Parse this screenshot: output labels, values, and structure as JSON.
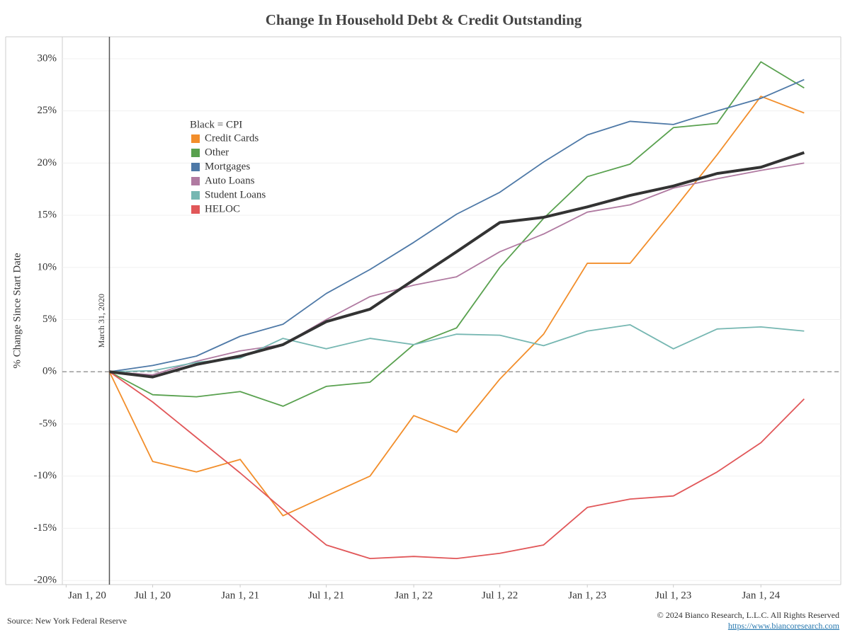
{
  "chart_data": {
    "type": "line",
    "title": "Change In Household Debt & Credit Outstanding",
    "y_label": "% Change Since Start Date",
    "legend_title": "Black = CPI",
    "annotation": "March 31, 2020",
    "annotation_x": "2020-04-01",
    "source": "Source: New York Federal Reserve",
    "copyright": "© 2024 Bianco Research, L.L.C. All Rights Reserved",
    "url": "https://www.biancoresearch.com",
    "x": [
      "2020-04-01",
      "2020-07-01",
      "2020-10-01",
      "2021-01-01",
      "2021-04-01",
      "2021-07-01",
      "2021-10-01",
      "2022-01-01",
      "2022-04-01",
      "2022-07-01",
      "2022-10-01",
      "2023-01-01",
      "2023-04-01",
      "2023-07-01",
      "2023-10-01",
      "2024-01-01",
      "2024-04-01"
    ],
    "xlim": [
      "2019-12-24",
      "2024-06-17"
    ],
    "xticks": [
      {
        "value": "2020-01-01",
        "label": "Jan 1, 20"
      },
      {
        "value": "2020-07-01",
        "label": "Jul 1, 20"
      },
      {
        "value": "2021-01-01",
        "label": "Jan 1, 21"
      },
      {
        "value": "2021-07-01",
        "label": "Jul 1, 21"
      },
      {
        "value": "2022-01-01",
        "label": "Jan 1, 22"
      },
      {
        "value": "2022-07-01",
        "label": "Jul 1, 22"
      },
      {
        "value": "2023-01-01",
        "label": "Jan 1, 23"
      },
      {
        "value": "2023-07-01",
        "label": "Jul 1, 23"
      },
      {
        "value": "2024-01-01",
        "label": "Jan 1, 24"
      }
    ],
    "ylim": [
      -20.4,
      32.1
    ],
    "yticks": [
      {
        "value": -20,
        "label": "-20%"
      },
      {
        "value": -15,
        "label": "-15%"
      },
      {
        "value": -10,
        "label": "-10%"
      },
      {
        "value": -5,
        "label": "-5%"
      },
      {
        "value": 0,
        "label": "0%"
      },
      {
        "value": 5,
        "label": "5%"
      },
      {
        "value": 10,
        "label": "10%"
      },
      {
        "value": 15,
        "label": "15%"
      },
      {
        "value": 20,
        "label": "20%"
      },
      {
        "value": 25,
        "label": "25%"
      },
      {
        "value": 30,
        "label": "30%"
      }
    ],
    "grid": true,
    "series": [
      {
        "name": "Credit Cards",
        "color": "#f28e2b",
        "values": [
          0,
          -8.6,
          -9.6,
          -8.4,
          -13.8,
          -11.9,
          -10.0,
          -4.2,
          -5.8,
          -0.7,
          3.6,
          10.4,
          10.4,
          15.5,
          20.8,
          26.4,
          24.8
        ]
      },
      {
        "name": "Other",
        "color": "#59a14f",
        "values": [
          0,
          -2.2,
          -2.4,
          -1.9,
          -3.3,
          -1.4,
          -1.0,
          2.6,
          4.2,
          10.0,
          14.7,
          18.7,
          19.9,
          23.4,
          23.8,
          29.7,
          27.2
        ]
      },
      {
        "name": "Mortgages",
        "color": "#4e79a7",
        "values": [
          0,
          0.6,
          1.5,
          3.4,
          4.55,
          7.5,
          9.8,
          12.4,
          15.1,
          17.2,
          20.1,
          22.7,
          24.0,
          23.7,
          25.0,
          26.2,
          28.0
        ]
      },
      {
        "name": "Auto Loans",
        "color": "#b07aa1",
        "values": [
          0,
          -0.3,
          1.0,
          2.0,
          2.6,
          5.0,
          7.2,
          8.3,
          9.1,
          11.5,
          13.2,
          15.3,
          16.0,
          17.6,
          18.5,
          19.3,
          20.0
        ]
      },
      {
        "name": "Student Loans",
        "color": "#76b7b2",
        "values": [
          0,
          0.1,
          0.9,
          1.3,
          3.2,
          2.2,
          3.2,
          2.6,
          3.6,
          3.5,
          2.5,
          3.9,
          4.5,
          2.2,
          4.1,
          4.3,
          3.9
        ]
      },
      {
        "name": "HELOC",
        "color": "#e15759",
        "values": [
          0,
          -2.9,
          -6.3,
          -9.7,
          -13.2,
          -16.6,
          -17.9,
          -17.7,
          -17.9,
          -17.4,
          -16.6,
          -13.0,
          -12.2,
          -11.9,
          -9.6,
          -6.8,
          -2.6
        ]
      },
      {
        "color": "#333333",
        "width": 4,
        "values": [
          0,
          -0.5,
          0.7,
          1.5,
          2.6,
          4.8,
          6.0,
          8.8,
          11.5,
          14.3,
          14.8,
          15.8,
          16.9,
          17.8,
          19.0,
          19.6,
          21.0
        ]
      }
    ]
  }
}
